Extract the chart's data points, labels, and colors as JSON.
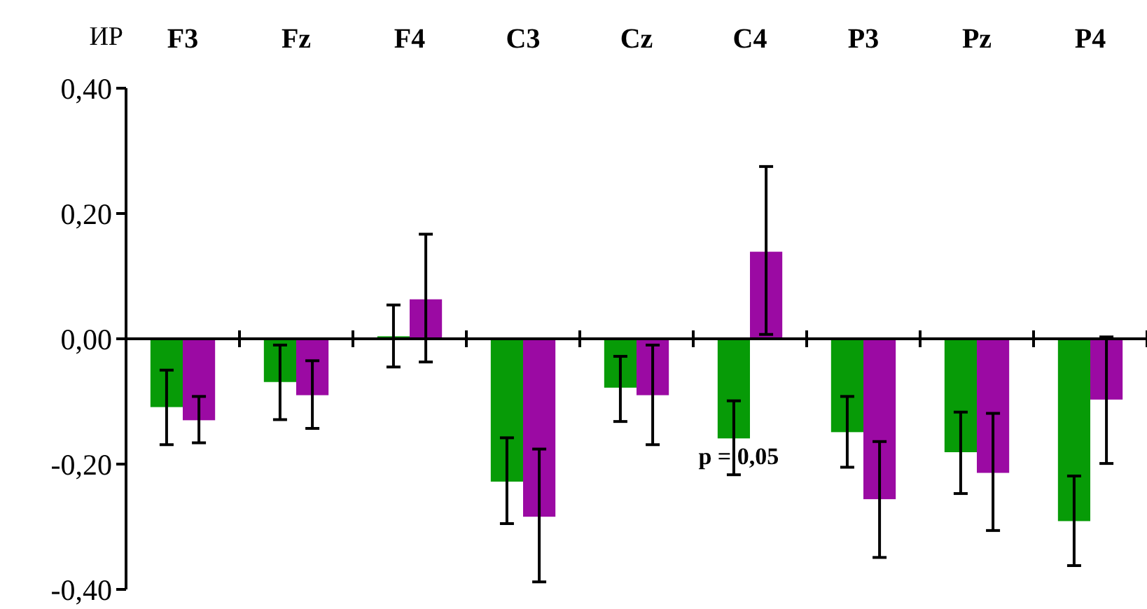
{
  "chart_data": {
    "type": "bar",
    "ylabel": "ИР",
    "categories": [
      "F3",
      "Fz",
      "F4",
      "C3",
      "Cz",
      "C4",
      "P3",
      "Pz",
      "P4"
    ],
    "series": [
      {
        "color": "#079b07",
        "values": [
          -0.109,
          -0.069,
          0.004,
          -0.228,
          -0.078,
          -0.159,
          -0.149,
          -0.181,
          -0.291
        ],
        "errors": [
          [
            -0.169,
            -0.05
          ],
          [
            -0.129,
            -0.01
          ],
          [
            -0.045,
            0.054
          ],
          [
            -0.295,
            -0.158
          ],
          [
            -0.132,
            -0.028
          ],
          [
            -0.217,
            -0.099
          ],
          [
            -0.205,
            -0.092
          ],
          [
            -0.247,
            -0.117
          ],
          [
            -0.362,
            -0.219
          ]
        ]
      },
      {
        "color": "#9b0aa3",
        "values": [
          -0.13,
          -0.09,
          0.063,
          -0.284,
          -0.09,
          0.139,
          -0.256,
          -0.214,
          -0.097
        ],
        "errors": [
          [
            -0.166,
            -0.092
          ],
          [
            -0.143,
            -0.035
          ],
          [
            -0.037,
            0.167
          ],
          [
            -0.388,
            -0.176
          ],
          [
            -0.169,
            -0.01
          ],
          [
            0.007,
            0.275
          ],
          [
            -0.349,
            -0.164
          ],
          [
            -0.306,
            -0.119
          ],
          [
            -0.199,
            0.003
          ]
        ]
      }
    ],
    "ylim": [
      -0.4,
      0.4
    ],
    "yticks": [
      {
        "value": -0.4,
        "label": "-0,40"
      },
      {
        "value": -0.2,
        "label": "-0,20"
      },
      {
        "value": 0,
        "label": "0,00"
      },
      {
        "value": 0.2,
        "label": "0,20"
      },
      {
        "value": 0.4,
        "label": "0,40"
      }
    ],
    "annotations": [
      "p = 0,05"
    ]
  }
}
